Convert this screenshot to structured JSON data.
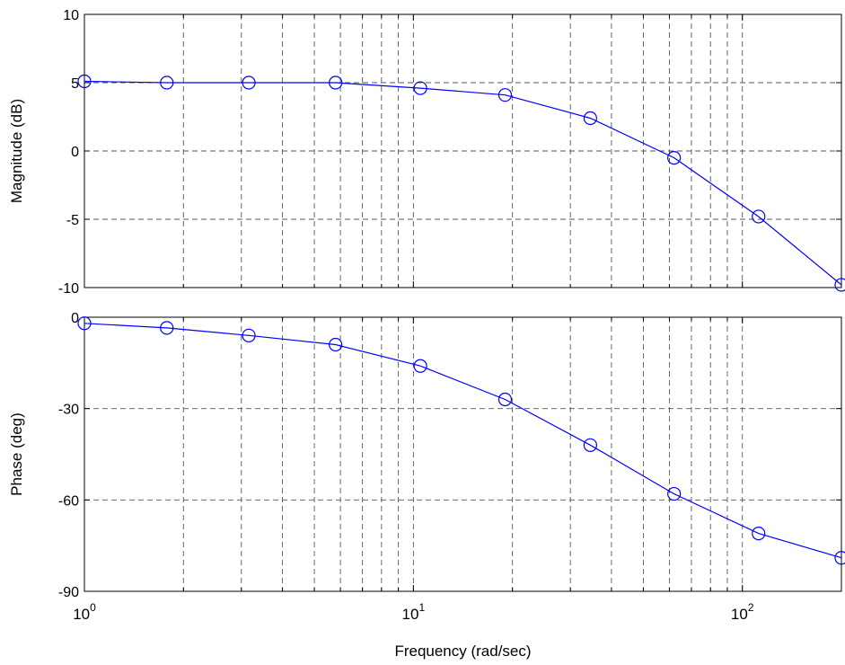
{
  "chart_data": [
    {
      "type": "line",
      "panel": "magnitude",
      "xscale": "log",
      "xlim": [
        1,
        200
      ],
      "ylim": [
        -10,
        10
      ],
      "ylabel": "Magnitude (dB)",
      "grid": true,
      "y_ticks": [
        "-10",
        "-5",
        "0",
        "5",
        "10"
      ],
      "y_tick_values": [
        -10,
        -5,
        0,
        5,
        10
      ],
      "series": [
        {
          "color": "#0000ff",
          "marker": "circle",
          "x": [
            1,
            1.78,
            3.16,
            5.8,
            10.5,
            19,
            34.5,
            62,
            112,
            200
          ],
          "y": [
            5.1,
            5.0,
            5.0,
            5.0,
            4.6,
            4.1,
            2.4,
            -0.5,
            -4.8,
            -9.8
          ]
        }
      ]
    },
    {
      "type": "line",
      "panel": "phase",
      "xscale": "log",
      "xlim": [
        1,
        200
      ],
      "ylim": [
        -90,
        0
      ],
      "ylabel": "Phase (deg)",
      "xlabel": "Frequency (rad/sec)",
      "grid": true,
      "y_ticks": [
        "-90",
        "-60",
        "-30",
        "0"
      ],
      "y_tick_values": [
        -90,
        -60,
        -30,
        0
      ],
      "x_ticks": [
        {
          "value": 1,
          "base": "10",
          "exp": "0"
        },
        {
          "value": 10,
          "base": "10",
          "exp": "1"
        },
        {
          "value": 100,
          "base": "10",
          "exp": "2"
        }
      ],
      "series": [
        {
          "color": "#0000ff",
          "marker": "circle",
          "x": [
            1,
            1.78,
            3.16,
            5.8,
            10.5,
            19,
            34.5,
            62,
            112,
            200
          ],
          "y": [
            -2,
            -3.5,
            -6,
            -9,
            -16,
            -27,
            -42,
            -58,
            -71,
            -79
          ]
        }
      ]
    }
  ]
}
